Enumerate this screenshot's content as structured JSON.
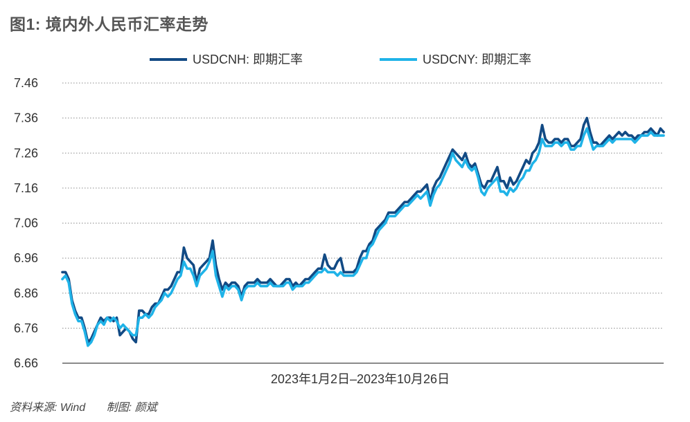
{
  "title": "图1: 境内外人民币汇率走势",
  "footer": {
    "source": "资料来源: Wind",
    "author": "制图: 颜斌"
  },
  "chart_data": {
    "type": "line",
    "title": "图1: 境内外人民币汇率走势",
    "xlabel": "2023年1月2日–2023年10月26日",
    "ylabel": "",
    "ylim": [
      6.66,
      7.46
    ],
    "yticks": [
      "7.46",
      "7.36",
      "7.26",
      "7.16",
      "7.06",
      "6.96",
      "6.86",
      "6.76",
      "6.66"
    ],
    "grid": true,
    "legend_position": "top-center",
    "series": [
      {
        "name": "USDCNH: 即期汇率",
        "color": "#124a84",
        "values": [
          6.92,
          6.92,
          6.9,
          6.84,
          6.81,
          6.79,
          6.79,
          6.76,
          6.72,
          6.73,
          6.75,
          6.77,
          6.79,
          6.78,
          6.79,
          6.79,
          6.78,
          6.79,
          6.74,
          6.75,
          6.76,
          6.75,
          6.73,
          6.72,
          6.81,
          6.81,
          6.8,
          6.8,
          6.82,
          6.83,
          6.83,
          6.85,
          6.87,
          6.87,
          6.88,
          6.9,
          6.92,
          6.92,
          6.99,
          6.96,
          6.95,
          6.94,
          6.89,
          6.93,
          6.94,
          6.95,
          6.96,
          7.01,
          6.94,
          6.9,
          6.87,
          6.89,
          6.88,
          6.89,
          6.89,
          6.88,
          6.85,
          6.88,
          6.89,
          6.89,
          6.89,
          6.9,
          6.89,
          6.89,
          6.89,
          6.9,
          6.89,
          6.88,
          6.88,
          6.89,
          6.9,
          6.9,
          6.88,
          6.89,
          6.88,
          6.89,
          6.9,
          6.9,
          6.91,
          6.92,
          6.93,
          6.93,
          6.97,
          6.94,
          6.93,
          6.93,
          6.95,
          6.96,
          6.92,
          6.92,
          6.92,
          6.92,
          6.93,
          6.96,
          6.98,
          6.98,
          7.0,
          7.01,
          7.04,
          7.05,
          7.06,
          7.07,
          7.09,
          7.09,
          7.09,
          7.1,
          7.11,
          7.12,
          7.12,
          7.13,
          7.14,
          7.15,
          7.15,
          7.16,
          7.17,
          7.12,
          7.16,
          7.18,
          7.19,
          7.21,
          7.23,
          7.25,
          7.27,
          7.26,
          7.25,
          7.24,
          7.26,
          7.23,
          7.22,
          7.23,
          7.2,
          7.17,
          7.16,
          7.18,
          7.18,
          7.2,
          7.22,
          7.18,
          7.18,
          7.16,
          7.19,
          7.17,
          7.18,
          7.2,
          7.22,
          7.24,
          7.23,
          7.26,
          7.27,
          7.29,
          7.34,
          7.3,
          7.29,
          7.29,
          7.3,
          7.3,
          7.29,
          7.3,
          7.3,
          7.28,
          7.28,
          7.29,
          7.3,
          7.34,
          7.36,
          7.32,
          7.29,
          7.29,
          7.28,
          7.29,
          7.3,
          7.31,
          7.3,
          7.31,
          7.32,
          7.31,
          7.32,
          7.31,
          7.31,
          7.3,
          7.31,
          7.31,
          7.32,
          7.32,
          7.33,
          7.32,
          7.31,
          7.33,
          7.32
        ]
      },
      {
        "name": "USDCNY: 即期汇率",
        "color": "#1fb3e8",
        "values": [
          6.9,
          6.91,
          6.89,
          6.83,
          6.8,
          6.78,
          6.78,
          6.75,
          6.71,
          6.72,
          6.74,
          6.77,
          6.78,
          6.77,
          6.79,
          6.78,
          6.79,
          6.78,
          6.76,
          6.77,
          6.76,
          6.75,
          6.74,
          6.74,
          6.79,
          6.79,
          6.8,
          6.79,
          6.8,
          6.82,
          6.83,
          6.84,
          6.86,
          6.85,
          6.86,
          6.88,
          6.9,
          6.91,
          6.95,
          6.93,
          6.93,
          6.91,
          6.88,
          6.91,
          6.92,
          6.93,
          6.95,
          6.98,
          6.91,
          6.88,
          6.85,
          6.88,
          6.87,
          6.88,
          6.88,
          6.87,
          6.84,
          6.87,
          6.88,
          6.88,
          6.88,
          6.89,
          6.88,
          6.88,
          6.88,
          6.89,
          6.88,
          6.88,
          6.88,
          6.88,
          6.89,
          6.89,
          6.87,
          6.88,
          6.88,
          6.88,
          6.89,
          6.89,
          6.9,
          6.91,
          6.92,
          6.92,
          6.93,
          6.92,
          6.92,
          6.92,
          6.91,
          6.92,
          6.91,
          6.91,
          6.91,
          6.91,
          6.92,
          6.94,
          6.96,
          6.96,
          6.99,
          7.0,
          7.02,
          7.04,
          7.05,
          7.06,
          7.08,
          7.08,
          7.08,
          7.09,
          7.1,
          7.11,
          7.11,
          7.12,
          7.13,
          7.14,
          7.13,
          7.14,
          7.15,
          7.11,
          7.14,
          7.16,
          7.17,
          7.19,
          7.21,
          7.23,
          7.26,
          7.24,
          7.23,
          7.22,
          7.24,
          7.22,
          7.21,
          7.22,
          7.19,
          7.15,
          7.14,
          7.16,
          7.17,
          7.18,
          7.19,
          7.15,
          7.15,
          7.14,
          7.16,
          7.15,
          7.16,
          7.18,
          7.19,
          7.21,
          7.21,
          7.23,
          7.24,
          7.26,
          7.3,
          7.28,
          7.28,
          7.28,
          7.29,
          7.29,
          7.28,
          7.29,
          7.29,
          7.27,
          7.27,
          7.28,
          7.28,
          7.31,
          7.33,
          7.3,
          7.27,
          7.28,
          7.28,
          7.28,
          7.29,
          7.3,
          7.29,
          7.3,
          7.3,
          7.3,
          7.3,
          7.3,
          7.3,
          7.29,
          7.3,
          7.31,
          7.31,
          7.31,
          7.32,
          7.31,
          7.31,
          7.31,
          7.31
        ]
      }
    ]
  }
}
